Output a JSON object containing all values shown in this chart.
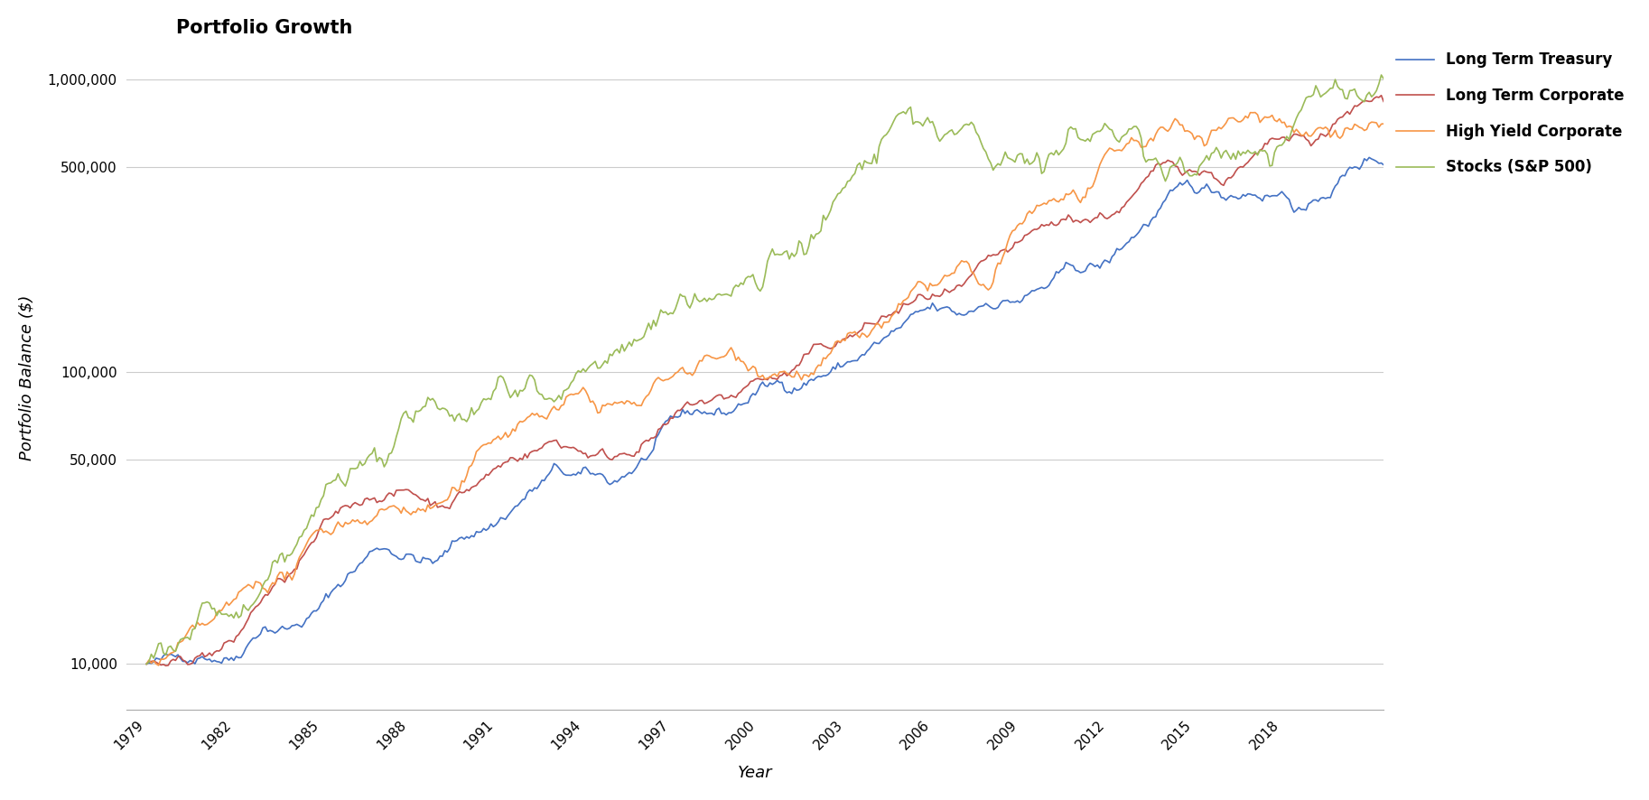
{
  "title": "Portfolio Growth",
  "xlabel": "Year",
  "ylabel": "Portfolio Balance ($)",
  "background_color": "#ffffff",
  "title_fontsize": 15,
  "axis_label_fontsize": 13,
  "tick_label_fontsize": 11,
  "legend_fontsize": 12,
  "start_year": 1979,
  "initial_value": 10000,
  "series": {
    "Long Term Treasury": {
      "color": "#4472C4",
      "annual_returns": [
        -1.2,
        13.5,
        3.6,
        40.0,
        0.7,
        15.5,
        31.0,
        24.5,
        -2.7,
        -7.4,
        22.5,
        13.0,
        25.1,
        17.7,
        -8.0,
        -7.8,
        20.1,
        22.3,
        8.7,
        -0.6,
        20.1,
        3.6,
        14.9,
        9.5,
        15.1,
        11.6,
        5.5,
        -9.2,
        17.8,
        4.5,
        8.5,
        7.8,
        2.5,
        28.9,
        25.9,
        1.6,
        -1.3,
        10.1,
        3.7,
        -12.5,
        27.9,
        17.7,
        1.8,
        -6.5,
        27.5,
        14.1
      ],
      "volatility": 0.02
    },
    "Long Term Corporate": {
      "color": "#C0504D",
      "annual_returns": [
        -3.0,
        11.0,
        7.3,
        42.6,
        16.7,
        30.9,
        19.5,
        16.4,
        0.5,
        -7.0,
        16.2,
        17.2,
        16.6,
        10.4,
        -3.4,
        -5.1,
        19.8,
        13.5,
        11.6,
        -0.4,
        16.9,
        2.5,
        12.9,
        10.9,
        10.6,
        11.2,
        6.0,
        -4.6,
        10.8,
        5.3,
        9.6,
        6.5,
        5.5,
        16.8,
        18.7,
        3.5,
        -5.3,
        11.2,
        8.0,
        -9.7,
        18.7,
        9.8,
        2.5,
        -5.0,
        23.8,
        10.7
      ],
      "volatility": 0.018
    },
    "High Yield Corporate": {
      "color": "#F79646",
      "annual_returns": [
        3.7,
        7.6,
        8.0,
        21.4,
        8.5,
        26.9,
        16.5,
        13.8,
        4.5,
        1.8,
        13.1,
        39.2,
        17.1,
        11.4,
        4.9,
        -5.5,
        -1.0,
        22.1,
        14.5,
        3.6,
        2.4,
        6.5,
        4.5,
        11.1,
        7.1,
        10.7,
        11.1,
        11.5,
        -26.4,
        57.5,
        15.2,
        5.0,
        15.3,
        7.4,
        7.2,
        -4.7,
        17.1,
        7.5,
        2.1,
        -4.6,
        14.3,
        7.1,
        5.0,
        14.6,
        7.4,
        2.6
      ],
      "volatility": 0.025
    },
    "Stocks (S&P 500)": {
      "color": "#9BBB59",
      "annual_returns": [
        12.3,
        25.8,
        -9.7,
        14.8,
        26.5,
        37.2,
        23.9,
        6.3,
        18.5,
        5.2,
        16.8,
        31.5,
        18.6,
        5.1,
        16.6,
        31.7,
        -3.1,
        30.5,
        7.6,
        10.1,
        1.3,
        37.6,
        22.9,
        33.4,
        28.6,
        21.0,
        -9.1,
        -11.9,
        -22.1,
        28.7,
        10.9,
        4.9,
        15.8,
        5.5,
        -37.0,
        26.5,
        15.1,
        2.1,
        16.0,
        32.4,
        13.7,
        1.4,
        12.0,
        21.8,
        -4.4,
        31.5
      ],
      "volatility": 0.04
    }
  },
  "yticks": [
    10000,
    50000,
    100000,
    500000,
    1000000
  ],
  "ytick_labels": [
    "10,000",
    "50,000",
    "100,000",
    "500,000",
    "1,000,000"
  ],
  "xticks": [
    1979,
    1982,
    1985,
    1988,
    1991,
    1994,
    1997,
    2000,
    2003,
    2006,
    2009,
    2012,
    2015,
    2018
  ],
  "xlim": [
    1978.3,
    2021.5
  ],
  "ylim": [
    7000,
    1300000
  ],
  "legend_labels": [
    "Long Term Treasury",
    "Long Term Corporate",
    "High Yield Corporate",
    "Stocks (S&P 500)"
  ]
}
